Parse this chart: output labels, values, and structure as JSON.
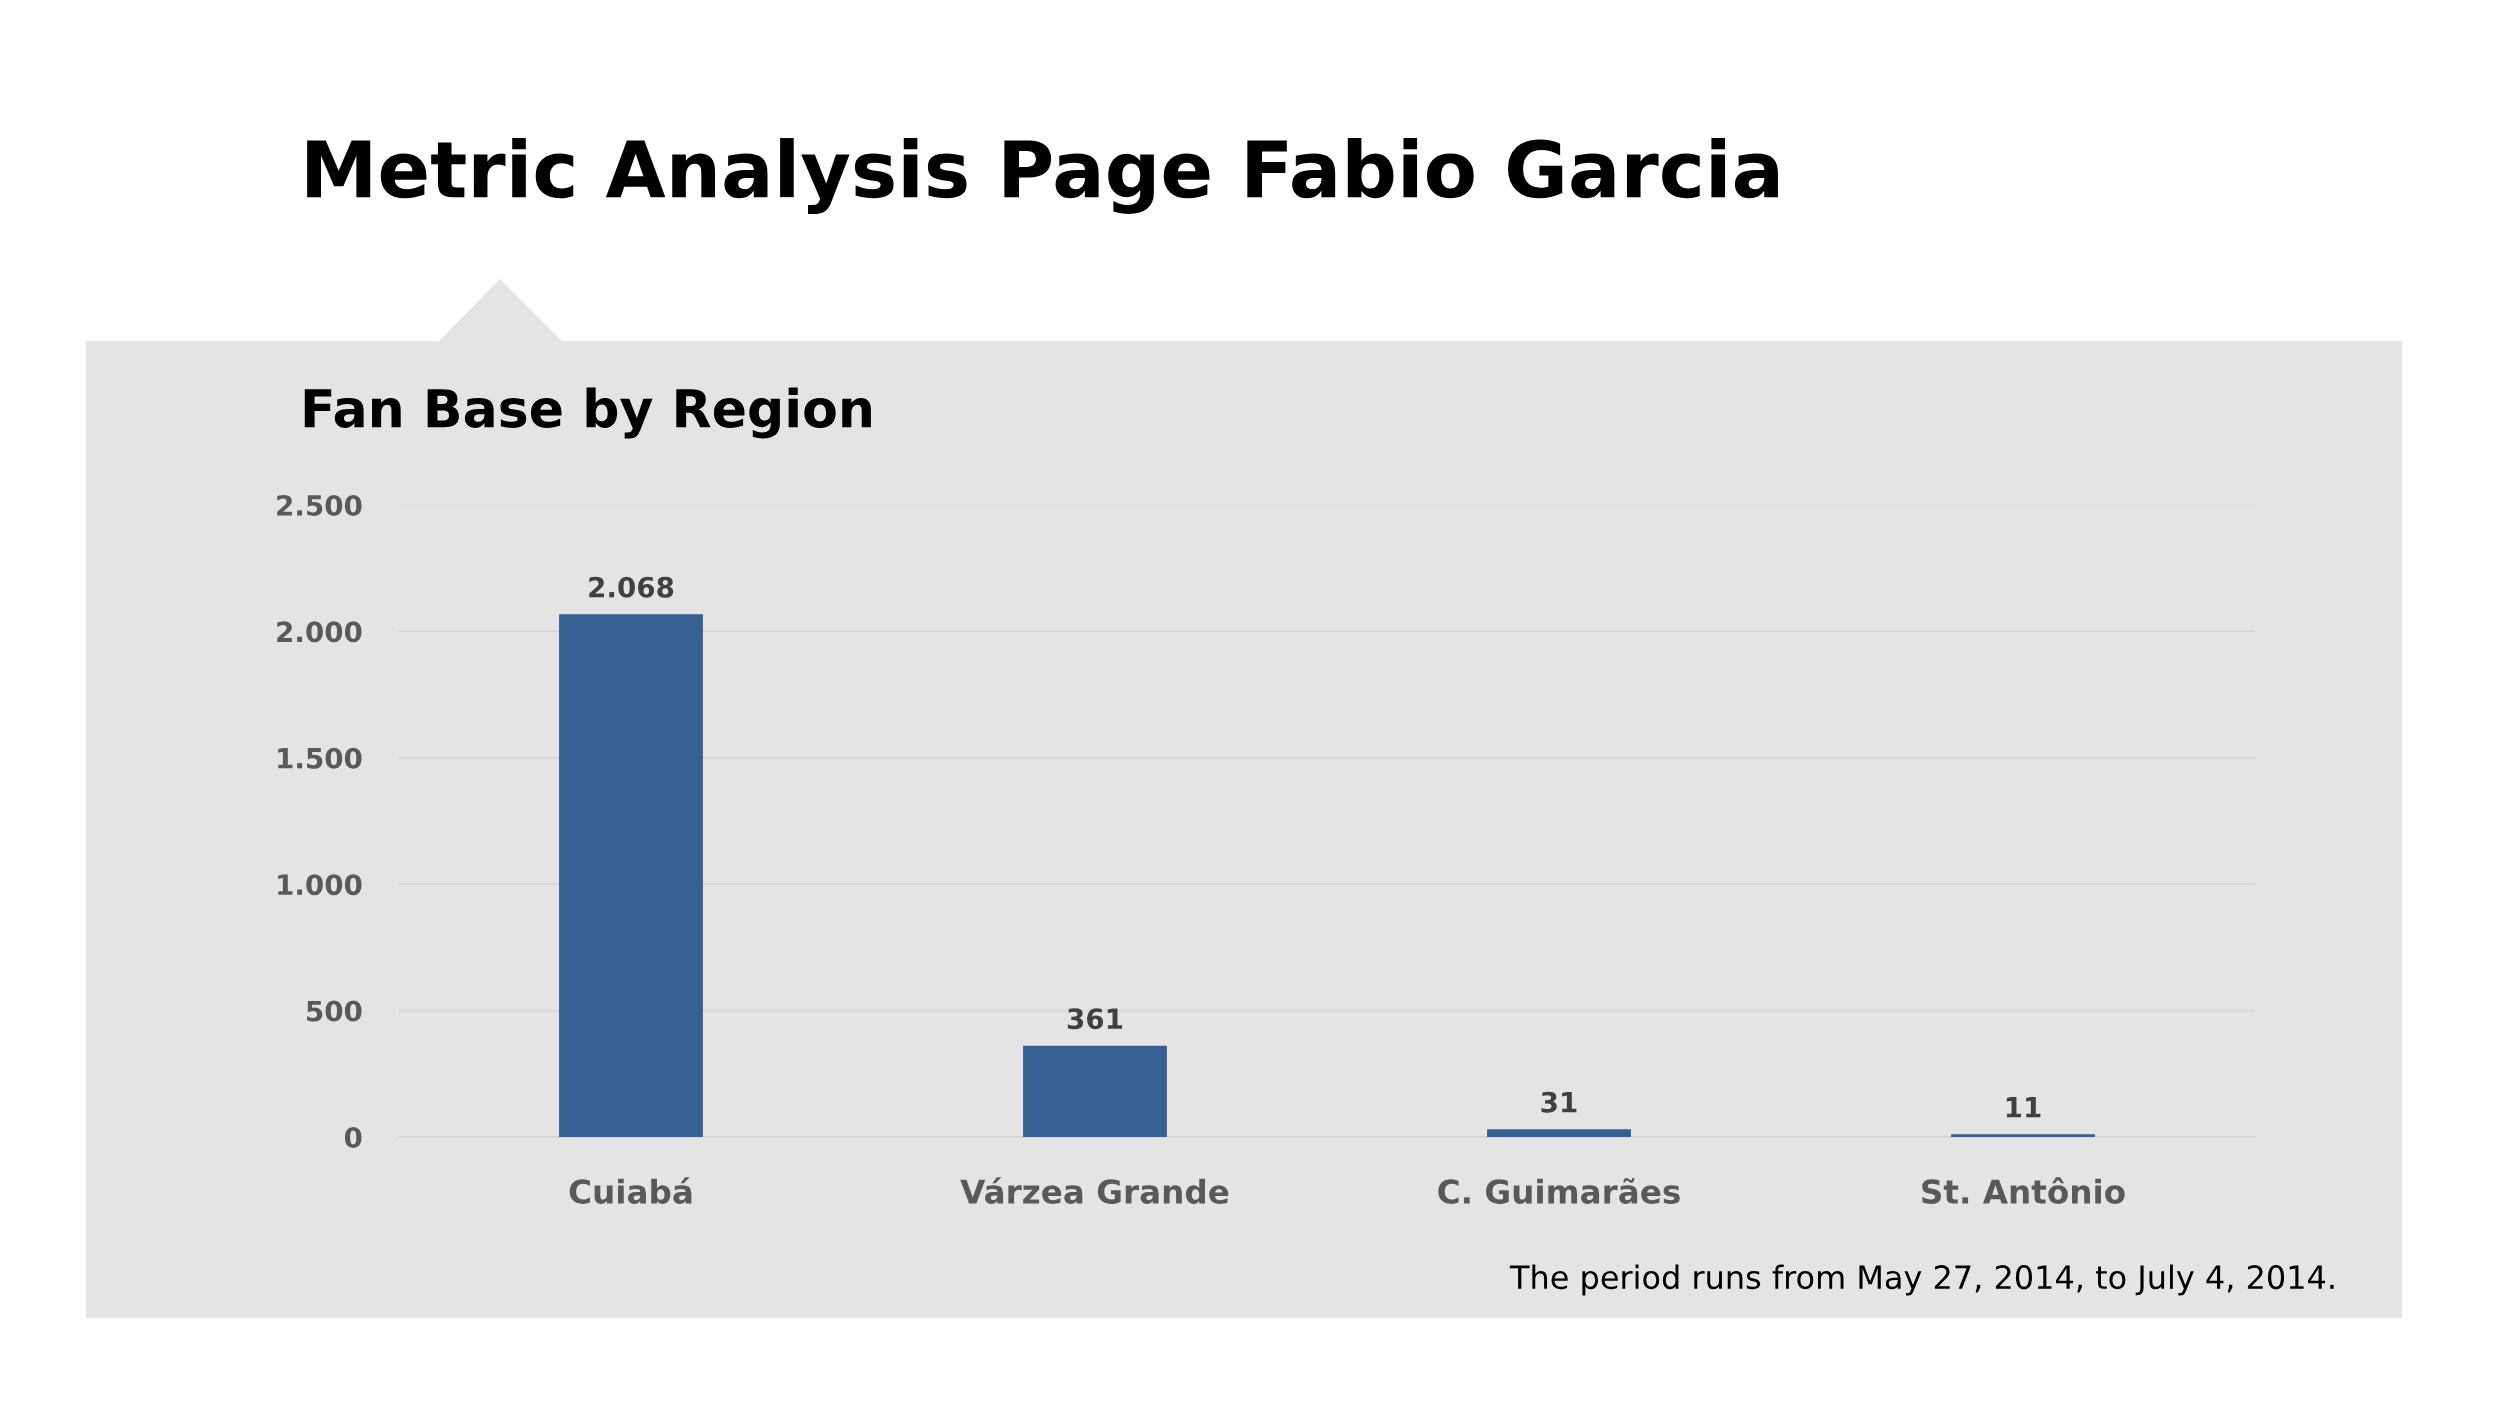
{
  "chart_data": {
    "type": "bar",
    "title": "Metric Analysis Page Fabio Garcia",
    "subtitle": "Fan Base by Region",
    "categories": [
      "Cuiabá",
      "Várzea Grande",
      "C. Guimarães",
      "St. Antônio"
    ],
    "values": [
      2068,
      361,
      31,
      11
    ],
    "color": "#365f93",
    "value_labels": [
      "2.068",
      "361",
      "31",
      "11"
    ],
    "ylim": [
      0,
      2500
    ],
    "yticks": [
      0,
      500,
      {
        "value": 1000,
        "label": "1.000"
      },
      {
        "value": 1500,
        "label": "1.500"
      },
      {
        "value": 2000,
        "label": "2.000"
      },
      {
        "value": 2500,
        "label": "2.500"
      }
    ],
    "grid": "y",
    "annotations": [
      "The period runs from May 27, 2014, to July 4, 2014."
    ]
  }
}
